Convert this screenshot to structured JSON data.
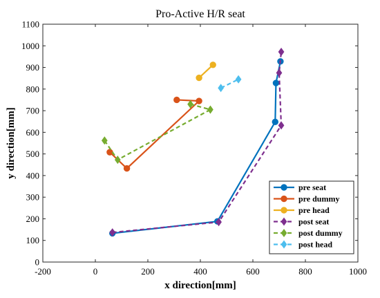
{
  "chart_data": {
    "type": "line",
    "title": "Pro-Active H/R seat",
    "xlabel": "x direction[mm]",
    "ylabel": "y direction[mm]",
    "xlim": [
      -200,
      1000
    ],
    "ylim": [
      0,
      1100
    ],
    "xticks": [
      -200,
      0,
      200,
      400,
      600,
      800,
      1000
    ],
    "yticks": [
      0,
      100,
      200,
      300,
      400,
      500,
      600,
      700,
      800,
      900,
      1000,
      1100
    ],
    "grid": false,
    "legend_position": "bottom-right",
    "series": [
      {
        "name": "pre seat",
        "color": "#0072BD",
        "dash": "solid",
        "marker": "circle",
        "x": [
          65,
          465,
          685,
          688,
          705
        ],
        "y": [
          133,
          188,
          648,
          828,
          928
        ]
      },
      {
        "name": "pre dummy",
        "color": "#D95319",
        "dash": "solid",
        "marker": "circle",
        "x": [
          55,
          120,
          395,
          310
        ],
        "y": [
          508,
          433,
          745,
          750
        ]
      },
      {
        "name": "pre head",
        "color": "#EDB120",
        "dash": "solid",
        "marker": "circle",
        "x": [
          395,
          448
        ],
        "y": [
          852,
          912
        ]
      },
      {
        "name": "post seat",
        "color": "#7E2F8E",
        "dash": "dashed",
        "marker": "diamond",
        "x": [
          65,
          470,
          708,
          700,
          708
        ],
        "y": [
          137,
          185,
          632,
          875,
          972
        ]
      },
      {
        "name": "post dummy",
        "color": "#77AC30",
        "dash": "dashed",
        "marker": "diamond",
        "x": [
          35,
          85,
          438,
          362
        ],
        "y": [
          562,
          473,
          705,
          730
        ]
      },
      {
        "name": "post head",
        "color": "#4DBEEE",
        "dash": "dashed",
        "marker": "diamond",
        "x": [
          478,
          545
        ],
        "y": [
          805,
          845
        ]
      }
    ]
  }
}
